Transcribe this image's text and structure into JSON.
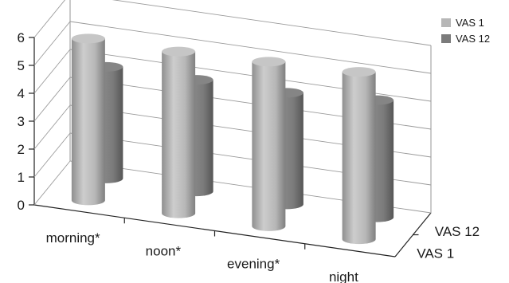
{
  "chart_data": {
    "type": "bar",
    "style": "3d-cylinder",
    "categories": [
      "morning*",
      "noon*",
      "evening*",
      "night"
    ],
    "series": [
      {
        "name": "VAS 1",
        "values": [
          5.8,
          5.8,
          5.9,
          6.0
        ],
        "color": "#b7b7b7"
      },
      {
        "name": "VAS 12",
        "values": [
          4.0,
          4.0,
          4.0,
          4.2
        ],
        "color": "#7b7b7b"
      }
    ],
    "depth_labels": [
      "VAS 1",
      "VAS 12"
    ],
    "y_ticks": [
      "0",
      "1",
      "2",
      "3",
      "4",
      "5",
      "6"
    ],
    "ylim": [
      0,
      6
    ],
    "grid": true,
    "legend_position": "right"
  }
}
